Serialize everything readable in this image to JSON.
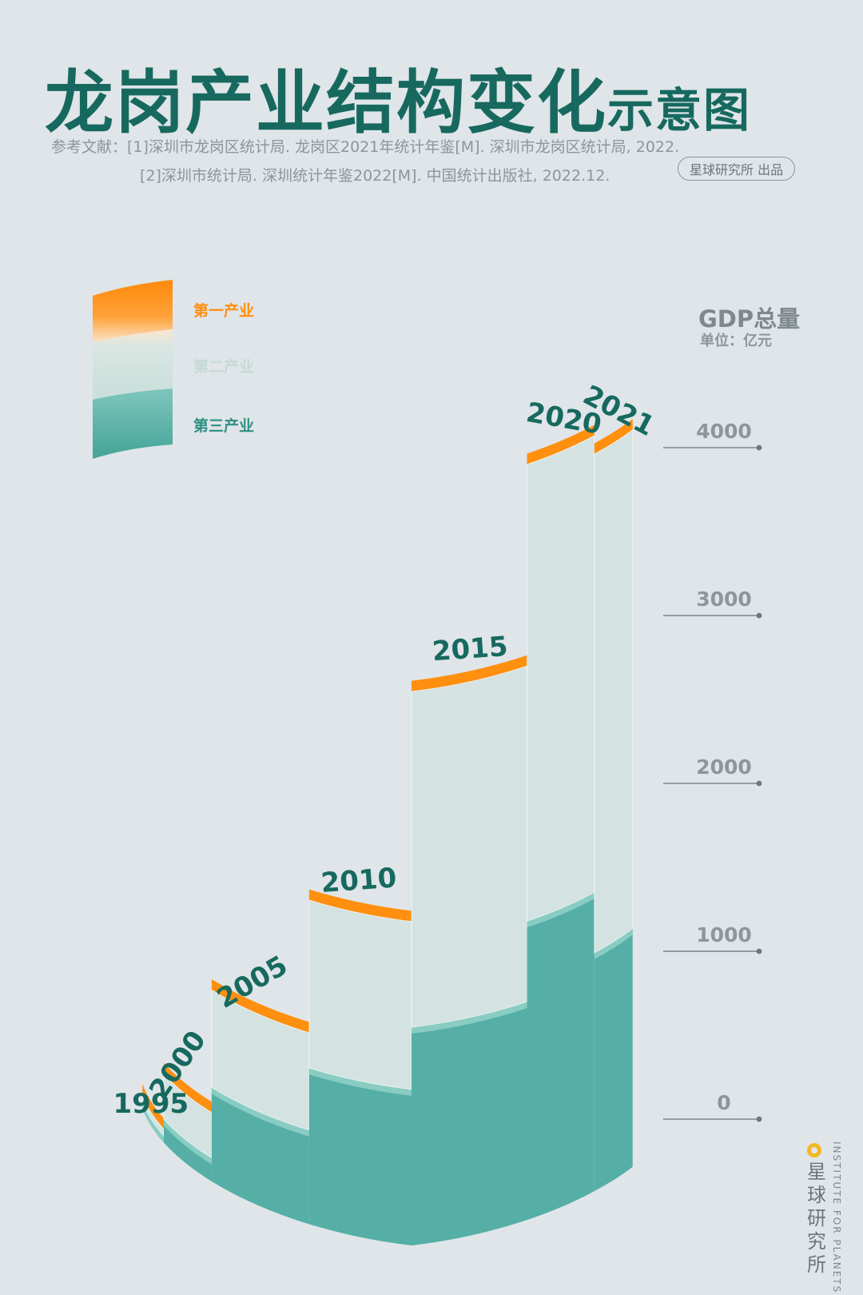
{
  "header": {
    "title_main": "龙岗产业结构变化",
    "title_sub": "示意图",
    "ref_line1": "参考文献：[1]深圳市龙岗区统计局. 龙岗区2021年统计年鉴[M]. 深圳市龙岗区统计局, 2022.",
    "ref_line2": "[2]深圳市统计局. 深圳统计年鉴2022[M]. 中国统计出版社, 2022.12.",
    "publisher": "星球研究所 出品"
  },
  "legend": {
    "primary": "第一产业",
    "secondary": "第二产业",
    "tertiary": "第三产业"
  },
  "axis": {
    "title": "GDP总量",
    "unit": "单位：亿元"
  },
  "brand": {
    "name": "星球研究所",
    "en": "INSTITUTE FOR PLANETS"
  },
  "colors": {
    "primary": "#ff8f0f",
    "secondary": "#d3e3df",
    "tertiary": "#55afa6",
    "title": "#17695f"
  },
  "chart_data": {
    "type": "bar",
    "title": "龙岗产业结构变化示意图",
    "categories": [
      "1995",
      "2000",
      "2005",
      "2010",
      "2015",
      "2020",
      "2021"
    ],
    "series": [
      {
        "name": "第三产业",
        "values": [
          40,
          140,
          560,
          930,
          1300,
          1780,
          1420
        ]
      },
      {
        "name": "第二产业",
        "values": [
          40,
          270,
          580,
          1000,
          2000,
          2720,
          2970
        ]
      },
      {
        "name": "第一产业",
        "values": [
          3,
          2,
          2,
          2,
          2,
          3,
          3
        ]
      }
    ],
    "yticks": [
      0,
      1000,
      2000,
      3000,
      4000
    ],
    "ylim": [
      0,
      4600
    ],
    "ylabel": "GDP总量",
    "yunit": "单位：亿元",
    "stacked": true,
    "legend": "top-left"
  }
}
